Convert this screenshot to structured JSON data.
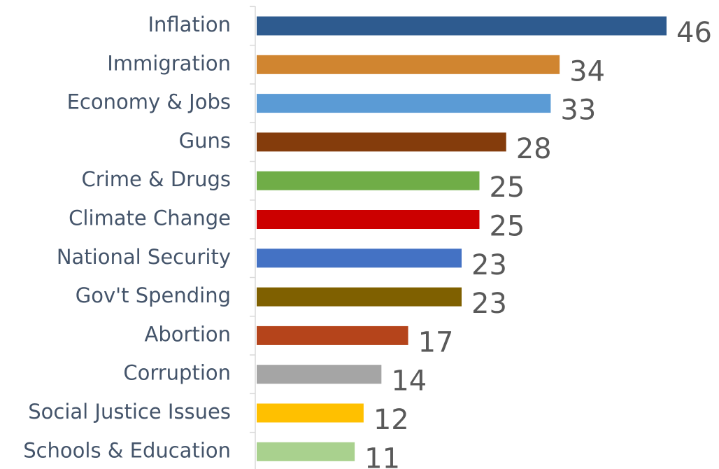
{
  "chart_data": {
    "type": "bar",
    "orientation": "horizontal",
    "categories": [
      "Inflation",
      "Immigration",
      "Economy & Jobs",
      "Guns",
      "Crime & Drugs",
      "Climate Change",
      "National Security",
      "Gov't Spending",
      "Abortion",
      "Corruption",
      "Social Justice Issues",
      "Schools & Education"
    ],
    "values": [
      46,
      34,
      33,
      28,
      25,
      25,
      23,
      23,
      17,
      14,
      12,
      11
    ],
    "colors": [
      "#2e5b8f",
      "#d08530",
      "#5b9bd5",
      "#843c0c",
      "#70ad47",
      "#cc0000",
      "#4472c4",
      "#7f6000",
      "#b5441b",
      "#a5a5a5",
      "#ffc000",
      "#a9d18e"
    ]
  }
}
